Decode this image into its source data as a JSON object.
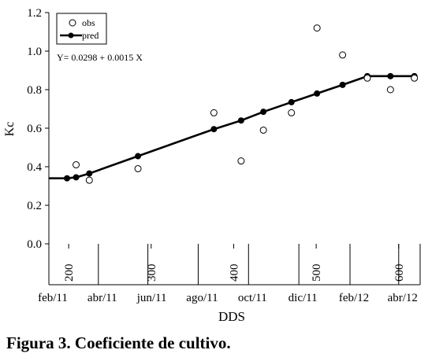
{
  "caption": "Figura 3. Coeficiente de cultivo.",
  "chart_data": {
    "type": "scatter",
    "xlabel": "DDS",
    "ylabel": "Kc",
    "ylim": [
      0,
      1.2
    ],
    "y_ticks": [
      "0.0",
      "0.2",
      "0.4",
      "0.6",
      "0.8",
      "1.0",
      "1.2"
    ],
    "x_tick_values": [
      200,
      300,
      400,
      500,
      600
    ],
    "x_tick_labels": [
      "200",
      "300",
      "400",
      "500",
      "600"
    ],
    "date_ticks": [
      {
        "x": 176,
        "label": "feb/11"
      },
      {
        "x": 236,
        "label": "abr/11"
      },
      {
        "x": 296,
        "label": "jun/11"
      },
      {
        "x": 357,
        "label": "ago/11"
      },
      {
        "x": 418,
        "label": "oct/11"
      },
      {
        "x": 479,
        "label": "dic/11"
      },
      {
        "x": 541,
        "label": "feb/12"
      },
      {
        "x": 600,
        "label": "abr/12"
      }
    ],
    "equation": "Y= 0.0298 + 0.0015 X",
    "grid": false,
    "legend_position": "top-left",
    "series": [
      {
        "name": "obs",
        "marker": "open-circle",
        "x": [
          209,
          225,
          284,
          376,
          409,
          436,
          470,
          501,
          532,
          562,
          590,
          619
        ],
        "y": [
          0.41,
          0.33,
          0.39,
          0.68,
          0.43,
          0.59,
          0.68,
          1.12,
          0.98,
          0.86,
          0.8,
          0.86
        ]
      },
      {
        "name": "pred",
        "marker": "filled-circle-line",
        "x": [
          176,
          198,
          209,
          225,
          284,
          376,
          409,
          436,
          470,
          501,
          532,
          562,
          590,
          619
        ],
        "y": [
          0.34,
          0.34,
          0.345,
          0.365,
          0.455,
          0.595,
          0.64,
          0.685,
          0.735,
          0.78,
          0.825,
          0.87,
          0.87,
          0.87
        ]
      }
    ]
  }
}
